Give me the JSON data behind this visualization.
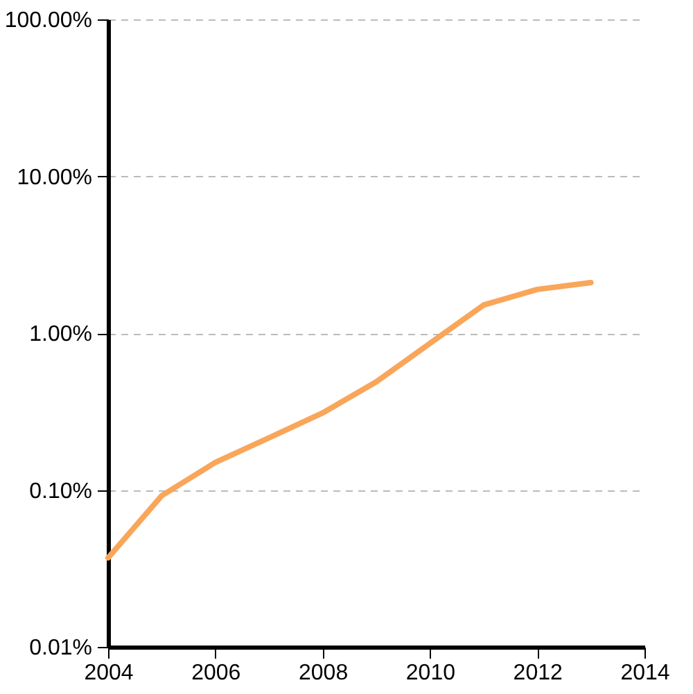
{
  "chart_data": {
    "type": "line",
    "x": [
      2004,
      2005,
      2006,
      2007,
      2008,
      2009,
      2010,
      2011,
      2012,
      2013
    ],
    "series": [
      {
        "color": "#f9a65a",
        "values": [
          0.037,
          0.092,
          0.15,
          0.215,
          0.31,
          0.49,
          0.86,
          1.51,
          1.9,
          2.1
        ]
      }
    ],
    "xlim": [
      2004,
      2014
    ],
    "xticks": [
      2004,
      2006,
      2008,
      2010,
      2012,
      2014
    ],
    "ylim": [
      0.01,
      100
    ],
    "yticks": [
      {
        "value": 0.01,
        "label": "0.01%"
      },
      {
        "value": 0.1,
        "label": "0.10%"
      },
      {
        "value": 1,
        "label": "1.00%"
      },
      {
        "value": 10,
        "label": "10.00%"
      },
      {
        "value": 100,
        "label": "100.00%"
      }
    ],
    "log": "y",
    "grid": "y",
    "marker": "none",
    "line_style": "solid",
    "legend": false
  }
}
